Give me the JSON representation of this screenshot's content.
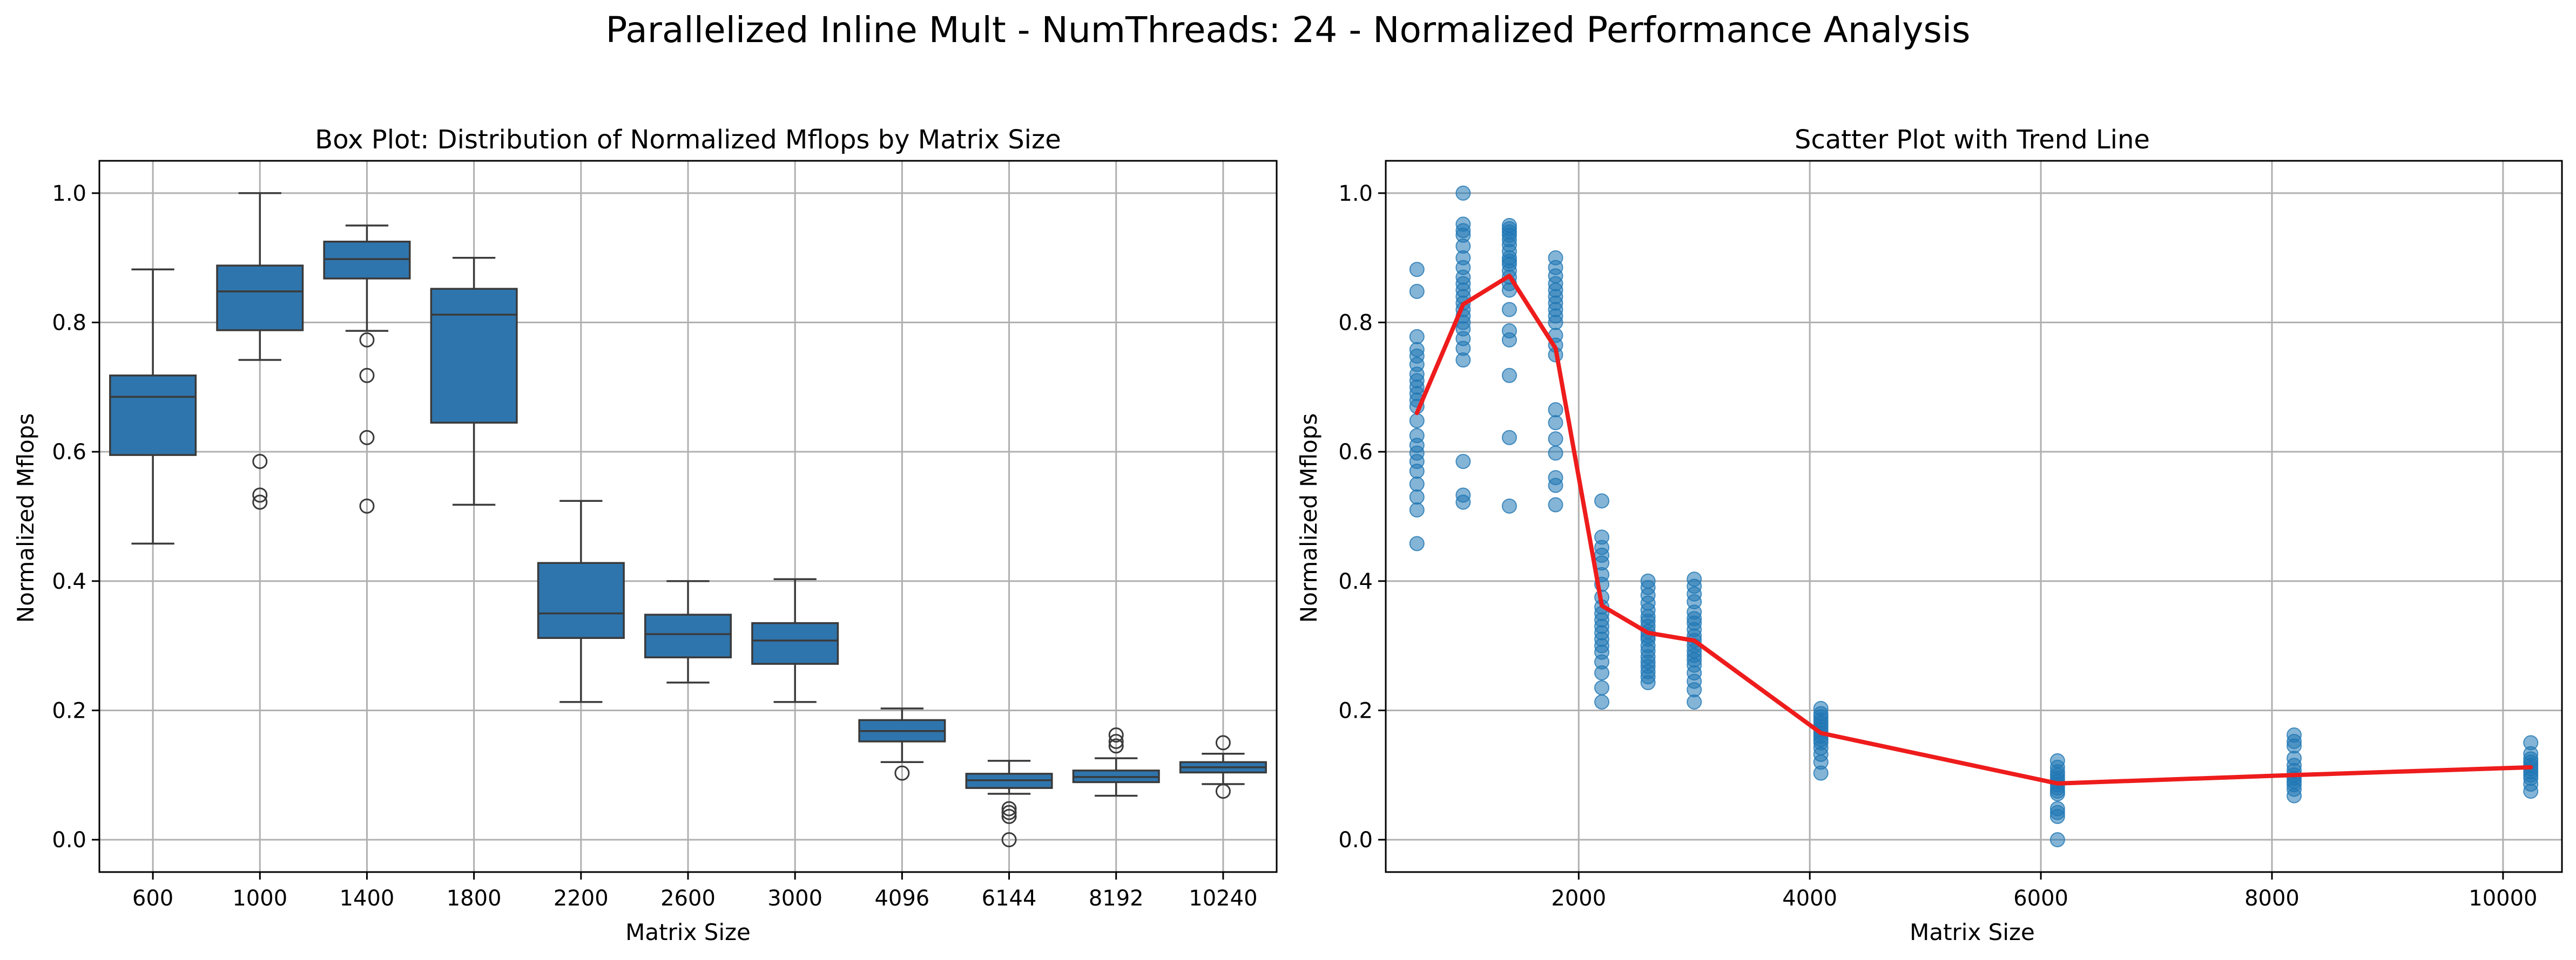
{
  "figure": {
    "title": "Parallelized Inline Mult - NumThreads: 24 - Normalized Performance Analysis"
  },
  "colors": {
    "box_fill": "#2f75ad",
    "box_edge": "#3a3a3a",
    "point": "#1f77b4",
    "trend": "#ee1c1c",
    "grid": "#b0b0b0",
    "axes": "#000000"
  },
  "chart_data": [
    {
      "type": "box",
      "title": "Box Plot: Distribution of Normalized Mflops by Matrix Size",
      "xlabel": "Matrix Size",
      "ylabel": "Normalized Mflops",
      "ylim": [
        -0.05,
        1.05
      ],
      "yticks": [
        0.0,
        0.2,
        0.4,
        0.6,
        0.8,
        1.0
      ],
      "ytick_labels": [
        "0.0",
        "0.2",
        "0.4",
        "0.6",
        "0.8",
        "1.0"
      ],
      "grid": true,
      "categories": [
        "600",
        "1000",
        "1400",
        "1800",
        "2200",
        "2600",
        "3000",
        "4096",
        "6144",
        "8192",
        "10240"
      ],
      "boxes": [
        {
          "q1": 0.595,
          "median": 0.685,
          "q3": 0.718,
          "whisker_low": 0.458,
          "whisker_high": 0.882,
          "outliers": []
        },
        {
          "q1": 0.788,
          "median": 0.848,
          "q3": 0.888,
          "whisker_low": 0.742,
          "whisker_high": 1.0,
          "outliers": [
            0.585,
            0.533,
            0.522
          ]
        },
        {
          "q1": 0.868,
          "median": 0.898,
          "q3": 0.925,
          "whisker_low": 0.787,
          "whisker_high": 0.95,
          "outliers": [
            0.773,
            0.718,
            0.622,
            0.516
          ]
        },
        {
          "q1": 0.645,
          "median": 0.812,
          "q3": 0.852,
          "whisker_low": 0.518,
          "whisker_high": 0.9,
          "outliers": []
        },
        {
          "q1": 0.312,
          "median": 0.35,
          "q3": 0.428,
          "whisker_low": 0.213,
          "whisker_high": 0.524,
          "outliers": []
        },
        {
          "q1": 0.282,
          "median": 0.318,
          "q3": 0.348,
          "whisker_low": 0.243,
          "whisker_high": 0.4,
          "outliers": []
        },
        {
          "q1": 0.272,
          "median": 0.308,
          "q3": 0.335,
          "whisker_low": 0.213,
          "whisker_high": 0.403,
          "outliers": []
        },
        {
          "q1": 0.152,
          "median": 0.168,
          "q3": 0.185,
          "whisker_low": 0.12,
          "whisker_high": 0.203,
          "outliers": [
            0.103
          ]
        },
        {
          "q1": 0.08,
          "median": 0.092,
          "q3": 0.102,
          "whisker_low": 0.071,
          "whisker_high": 0.122,
          "outliers": [
            0.048,
            0.042,
            0.036,
            0.0
          ]
        },
        {
          "q1": 0.089,
          "median": 0.097,
          "q3": 0.107,
          "whisker_low": 0.068,
          "whisker_high": 0.126,
          "outliers": [
            0.162,
            0.152,
            0.145
          ]
        },
        {
          "q1": 0.104,
          "median": 0.112,
          "q3": 0.12,
          "whisker_low": 0.086,
          "whisker_high": 0.133,
          "outliers": [
            0.15,
            0.075
          ]
        }
      ]
    },
    {
      "type": "scatter",
      "title": "Scatter Plot with Trend Line",
      "xlabel": "Matrix Size",
      "ylabel": "Normalized Mflops",
      "xlim": [
        330,
        10510
      ],
      "ylim": [
        -0.05,
        1.05
      ],
      "xticks": [
        2000,
        4000,
        6000,
        8000,
        10000
      ],
      "xtick_labels": [
        "2000",
        "4000",
        "6000",
        "8000",
        "10000"
      ],
      "yticks": [
        0.0,
        0.2,
        0.4,
        0.6,
        0.8,
        1.0
      ],
      "ytick_labels": [
        "0.0",
        "0.2",
        "0.4",
        "0.6",
        "0.8",
        "1.0"
      ],
      "grid": true,
      "points": [
        {
          "x": 600,
          "values": [
            0.882,
            0.848,
            0.778,
            0.758,
            0.748,
            0.735,
            0.72,
            0.71,
            0.7,
            0.69,
            0.68,
            0.67,
            0.648,
            0.625,
            0.61,
            0.598,
            0.585,
            0.57,
            0.55,
            0.53,
            0.51,
            0.458
          ]
        },
        {
          "x": 1000,
          "values": [
            1.0,
            0.952,
            0.942,
            0.935,
            0.918,
            0.9,
            0.885,
            0.87,
            0.86,
            0.85,
            0.84,
            0.83,
            0.82,
            0.81,
            0.8,
            0.79,
            0.775,
            0.76,
            0.742,
            0.585,
            0.533,
            0.522
          ]
        },
        {
          "x": 1400,
          "values": [
            0.95,
            0.945,
            0.94,
            0.935,
            0.928,
            0.92,
            0.91,
            0.9,
            0.895,
            0.89,
            0.88,
            0.87,
            0.86,
            0.85,
            0.82,
            0.787,
            0.773,
            0.718,
            0.622,
            0.516
          ]
        },
        {
          "x": 1800,
          "values": [
            0.9,
            0.885,
            0.872,
            0.86,
            0.85,
            0.84,
            0.83,
            0.82,
            0.81,
            0.8,
            0.78,
            0.765,
            0.75,
            0.665,
            0.645,
            0.62,
            0.598,
            0.56,
            0.548,
            0.518
          ]
        },
        {
          "x": 2200,
          "values": [
            0.524,
            0.468,
            0.452,
            0.44,
            0.428,
            0.41,
            0.395,
            0.375,
            0.36,
            0.35,
            0.34,
            0.33,
            0.32,
            0.31,
            0.3,
            0.29,
            0.275,
            0.258,
            0.235,
            0.213
          ]
        },
        {
          "x": 2600,
          "values": [
            0.4,
            0.39,
            0.378,
            0.366,
            0.355,
            0.345,
            0.338,
            0.33,
            0.322,
            0.315,
            0.31,
            0.3,
            0.292,
            0.283,
            0.275,
            0.268,
            0.26,
            0.252,
            0.243
          ]
        },
        {
          "x": 3000,
          "values": [
            0.403,
            0.392,
            0.38,
            0.368,
            0.352,
            0.342,
            0.335,
            0.325,
            0.315,
            0.308,
            0.3,
            0.292,
            0.285,
            0.278,
            0.27,
            0.258,
            0.245,
            0.232,
            0.213
          ]
        },
        {
          "x": 4096,
          "values": [
            0.203,
            0.195,
            0.19,
            0.185,
            0.18,
            0.175,
            0.17,
            0.165,
            0.16,
            0.155,
            0.15,
            0.142,
            0.132,
            0.12,
            0.103
          ]
        },
        {
          "x": 6144,
          "values": [
            0.122,
            0.112,
            0.105,
            0.1,
            0.095,
            0.09,
            0.085,
            0.08,
            0.075,
            0.071,
            0.048,
            0.042,
            0.036,
            0.0
          ]
        },
        {
          "x": 8192,
          "values": [
            0.162,
            0.152,
            0.145,
            0.126,
            0.115,
            0.107,
            0.1,
            0.095,
            0.09,
            0.085,
            0.078,
            0.068
          ]
        },
        {
          "x": 10240,
          "values": [
            0.15,
            0.133,
            0.125,
            0.12,
            0.115,
            0.11,
            0.105,
            0.1,
            0.095,
            0.086,
            0.075
          ]
        }
      ],
      "trend_line": {
        "x": [
          600,
          1000,
          1400,
          1800,
          2200,
          2600,
          3000,
          4096,
          6144,
          8192,
          10240
        ],
        "y": [
          0.66,
          0.828,
          0.872,
          0.76,
          0.362,
          0.32,
          0.308,
          0.165,
          0.087,
          0.1,
          0.112
        ]
      }
    }
  ]
}
